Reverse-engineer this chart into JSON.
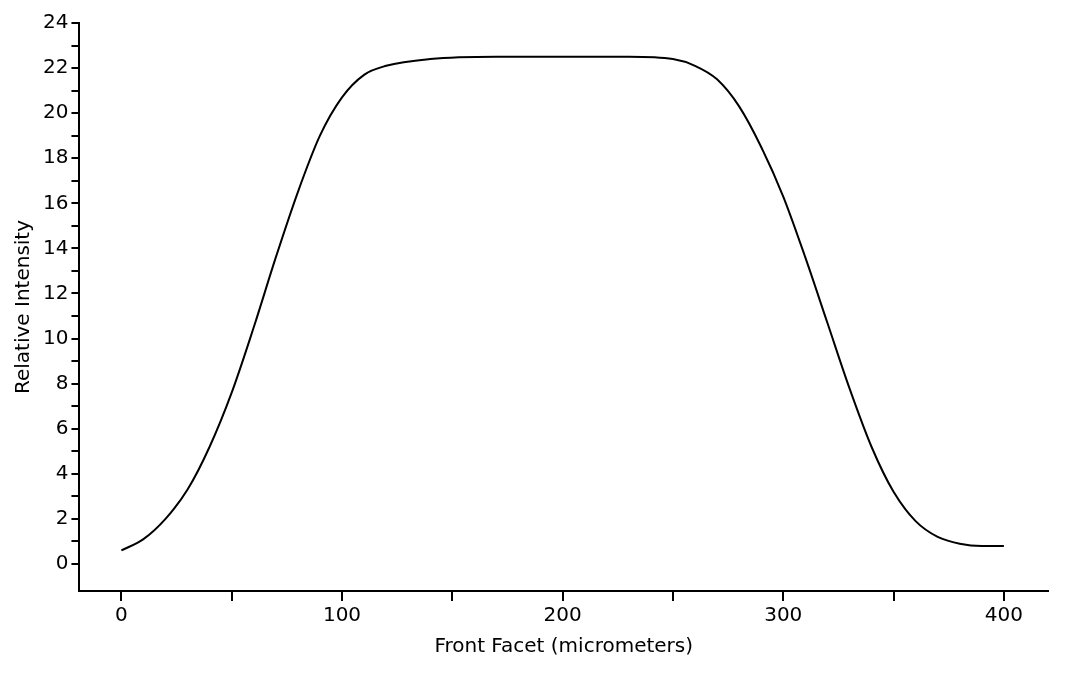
{
  "chart_data": {
    "type": "line",
    "xlabel": "Front Facet (micrometers)",
    "ylabel": "Relative Intensity",
    "x": [
      0,
      10,
      20,
      30,
      40,
      50,
      60,
      70,
      80,
      90,
      100,
      110,
      120,
      140,
      170,
      200,
      230,
      250,
      260,
      270,
      280,
      290,
      300,
      310,
      320,
      330,
      340,
      350,
      360,
      370,
      380,
      390,
      400
    ],
    "series": [
      {
        "color": "#000000",
        "values": [
          0.6,
          1.1,
          2.0,
          3.3,
          5.2,
          7.6,
          10.5,
          13.6,
          16.5,
          19.0,
          20.7,
          21.7,
          22.1,
          22.4,
          22.5,
          22.5,
          22.5,
          22.4,
          22.1,
          21.5,
          20.3,
          18.5,
          16.3,
          13.6,
          10.7,
          7.8,
          5.2,
          3.2,
          1.9,
          1.2,
          0.9,
          0.8,
          0.8
        ]
      }
    ],
    "xlim": [
      -19,
      420
    ],
    "ylim": [
      -1.2,
      24
    ],
    "xticks": [
      0,
      {
        "value": 50,
        "label": null
      },
      100,
      {
        "value": 150,
        "label": null
      },
      200,
      {
        "value": 250,
        "label": null
      },
      300,
      {
        "value": 350,
        "label": null
      },
      400
    ],
    "yticks": [
      0,
      {
        "value": 1,
        "label": null
      },
      2,
      {
        "value": 3,
        "label": null
      },
      4,
      {
        "value": 5,
        "label": null
      },
      6,
      {
        "value": 7,
        "label": null
      },
      8,
      {
        "value": 9,
        "label": null
      },
      10,
      {
        "value": 11,
        "label": null
      },
      12,
      {
        "value": 13,
        "label": null
      },
      14,
      {
        "value": 15,
        "label": null
      },
      16,
      {
        "value": 17,
        "label": null
      },
      18,
      {
        "value": 19,
        "label": null
      },
      20,
      {
        "value": 21,
        "label": null
      },
      22,
      {
        "value": 23,
        "label": null
      },
      24
    ],
    "grid": false,
    "legend": false,
    "marker": "none",
    "line_style": "solid"
  }
}
